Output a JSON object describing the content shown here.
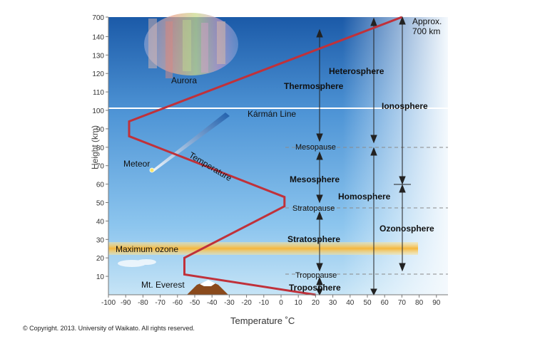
{
  "axes": {
    "x_label": "Temperature ˚C",
    "y_label": "Height (km)",
    "x_ticks": [
      "-100",
      "-90",
      "-80",
      "-70",
      "-60",
      "-50",
      "-40",
      "-30",
      "-20",
      "-10",
      "0",
      "10",
      "20",
      "30",
      "40",
      "50",
      "60",
      "70",
      "80",
      "90"
    ],
    "y_ticks": [
      "10",
      "20",
      "30",
      "40",
      "50",
      "60",
      "70",
      "80",
      "90",
      "100",
      "110",
      "120",
      "130",
      "140",
      "700"
    ]
  },
  "labels": {
    "aurora": "Aurora",
    "karman": "Kármán Line",
    "meteor": "Meteor",
    "temperature": "Temperature",
    "max_ozone": "Maximum ozone",
    "everest": "Mt. Everest",
    "approx_line1": "Approx.",
    "approx_line2": "700 km",
    "heterosphere": "Heterosphere",
    "thermosphere": "Thermosphere",
    "ionosphere": "Ionosphere",
    "mesopause": "Mesopause",
    "mesosphere": "Mesosphere",
    "homosphere": "Homosphere",
    "stratopause": "Stratopause",
    "stratosphere": "Stratosphere",
    "ozonosphere": "Ozonosphere",
    "tropopause": "Tropopause",
    "troposphere": "Troposphere"
  },
  "temperature_profile": [
    {
      "temp": 20,
      "height": 0
    },
    {
      "temp": -56,
      "height": 11
    },
    {
      "temp": -56,
      "height": 20
    },
    {
      "temp": 2,
      "height": 48
    },
    {
      "temp": 2,
      "height": 53
    },
    {
      "temp": -88,
      "height": 86
    },
    {
      "temp": -88,
      "height": 94
    },
    {
      "temp": 70,
      "height": 700
    }
  ],
  "copyright": "© Copyright. 2013. University of Waikato. All rights reserved.",
  "colors": {
    "temperature_line": "#c0313a",
    "sky_top": "#1f5fb0",
    "sky_bottom": "#bfe0f5",
    "ozone_band": "#f7c04a"
  }
}
